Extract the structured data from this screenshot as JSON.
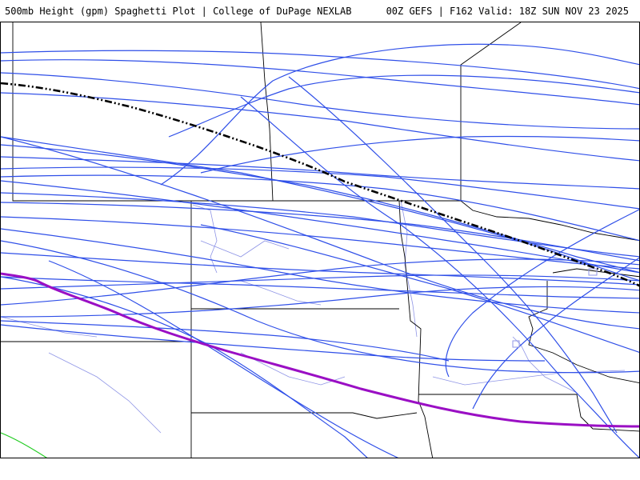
{
  "header": {
    "product_title": "500mb Height (gpm) Spaghetti Plot | College of DuPage NEXLAB",
    "run_info": "00Z GEFS | F162 Valid: 18Z SUN NOV 23 2025"
  },
  "colors": {
    "member_line": "#2f4fe8",
    "mean_line": "#000000",
    "highlight_line": "#9a0fc4",
    "secondary_line": "#22cc22",
    "state_border": "#000000",
    "county_river": "#8f95e6"
  },
  "legend_semantics": {
    "member_lines": "ensemble members",
    "mean_line_style": "dash-dot",
    "highlight_line_style": "solid-thick"
  }
}
